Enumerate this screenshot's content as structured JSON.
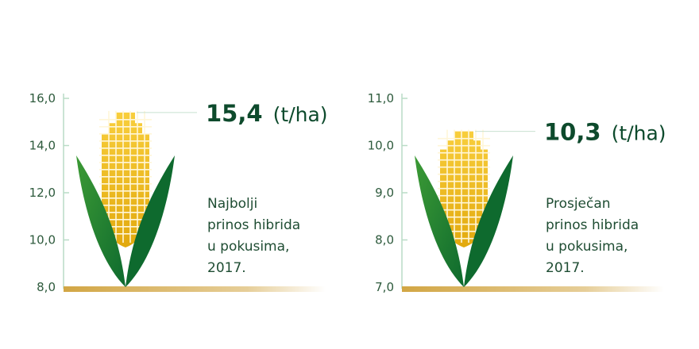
{
  "colors": {
    "leaf_dark": "#0e6a2e",
    "leaf_light": "#3c9a35",
    "kernel_top": "#f8ce3c",
    "kernel_bottom": "#e2a90e",
    "kernel_grid": "#fff6d8",
    "axis": "#b9dcc6",
    "leader": "#c8e0d0",
    "ground": "#d2a644",
    "text": "#1f4d33"
  },
  "chart_data": [
    {
      "type": "bar",
      "yticks": [
        "16,0",
        "14,0",
        "12,0",
        "10,0",
        "8,0"
      ],
      "ylim": [
        8.0,
        16.0
      ],
      "value": 15.4,
      "value_label": "15,4",
      "unit_label": "(t/ha)",
      "caption": [
        "Najbolji",
        "prinos hibrida",
        "u pokusima,",
        "2017."
      ]
    },
    {
      "type": "bar",
      "yticks": [
        "11,0",
        "10,0",
        "9,0",
        "8,0",
        "7,0"
      ],
      "ylim": [
        7.0,
        11.0
      ],
      "value": 10.3,
      "value_label": "10,3",
      "unit_label": "(t/ha)",
      "caption": [
        "Prosječan",
        "prinos hibrida",
        "u pokusima,",
        "2017."
      ]
    }
  ]
}
